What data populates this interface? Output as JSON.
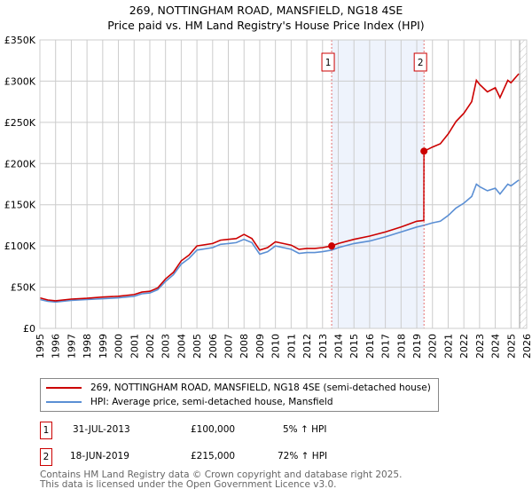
{
  "title_line1": "269, NOTTINGHAM ROAD, MANSFIELD, NG18 4SE",
  "title_line2": "Price paid vs. HM Land Registry's House Price Index (HPI)",
  "legend": {
    "property": "269, NOTTINGHAM ROAD, MANSFIELD, NG18 4SE (semi-detached house)",
    "hpi": "HPI: Average price, semi-detached house, Mansfield"
  },
  "sales": [
    {
      "num": "1",
      "date": "31-JUL-2013",
      "price": "£100,000",
      "hpi": "5% ↑ HPI"
    },
    {
      "num": "2",
      "date": "18-JUN-2019",
      "price": "£215,000",
      "hpi": "72% ↑ HPI"
    }
  ],
  "footer_line1": "Contains HM Land Registry data © Crown copyright and database right 2025.",
  "footer_line2": "This data is licensed under the Open Government Licence v3.0.",
  "colors": {
    "property": "#cc0000",
    "hpi": "#5b8fd4",
    "shade": "#eef3fc",
    "grid": "#cccccc"
  },
  "chart_data": {
    "type": "line",
    "title": "Price paid vs. HM Land Registry's House Price Index (HPI)",
    "xlim": [
      1995,
      2026
    ],
    "ylim": [
      0,
      350000
    ],
    "x_ticks": [
      "1995",
      "1996",
      "1997",
      "1998",
      "1999",
      "2000",
      "2001",
      "2002",
      "2003",
      "2004",
      "2005",
      "2006",
      "2007",
      "2008",
      "2009",
      "2010",
      "2011",
      "2012",
      "2013",
      "2014",
      "2015",
      "2016",
      "2017",
      "2018",
      "2019",
      "2020",
      "2021",
      "2022",
      "2023",
      "2024",
      "2025",
      "2026"
    ],
    "y_ticks": [
      {
        "value": 0,
        "label": "£0"
      },
      {
        "value": 50000,
        "label": "£50K"
      },
      {
        "value": 100000,
        "label": "£100K"
      },
      {
        "value": 150000,
        "label": "£150K"
      },
      {
        "value": 200000,
        "label": "£200K"
      },
      {
        "value": 250000,
        "label": "£250K"
      },
      {
        "value": 300000,
        "label": "£300K"
      },
      {
        "value": 350000,
        "label": "£350K"
      }
    ],
    "grid": true,
    "shaded_range": [
      2013.58,
      2019.46
    ],
    "hatched_from": 2025.55,
    "markers": [
      {
        "label": "1",
        "x": 2013.58,
        "y": 100000
      },
      {
        "label": "2",
        "x": 2019.46,
        "y": 215000
      }
    ],
    "series": [
      {
        "name": "269, NOTTINGHAM ROAD, MANSFIELD, NG18 4SE (semi-detached house)",
        "x": [
          1995,
          1995.5,
          1996,
          1997,
          1998,
          1999,
          2000,
          2001,
          2001.5,
          2002,
          2002.5,
          2003,
          2003.5,
          2004,
          2004.5,
          2005,
          2006,
          2006.5,
          2007,
          2007.5,
          2008,
          2008.5,
          2009,
          2009.5,
          2010,
          2010.5,
          2011,
          2011.5,
          2012,
          2012.5,
          2013,
          2013.58,
          2014,
          2015,
          2016,
          2017,
          2018,
          2019,
          2019.45,
          2019.46,
          2020,
          2020.5,
          2021,
          2021.5,
          2022,
          2022.5,
          2022.8,
          2023,
          2023.5,
          2024,
          2024.3,
          2024.8,
          2025,
          2025.5
        ],
        "y": [
          37000,
          34500,
          33500,
          35500,
          36500,
          38000,
          39000,
          41000,
          44000,
          45000,
          49000,
          60000,
          68000,
          82000,
          89000,
          100000,
          103000,
          107000,
          108000,
          109000,
          114000,
          109000,
          95000,
          98000,
          105000,
          103000,
          101000,
          96000,
          97000,
          97000,
          98000,
          100000,
          103000,
          108000,
          112000,
          117000,
          123000,
          130000,
          131000,
          215000,
          220000,
          224000,
          236000,
          251000,
          261000,
          275000,
          301000,
          296000,
          287000,
          292000,
          280000,
          301000,
          298000,
          309000
        ]
      },
      {
        "name": "HPI: Average price, semi-detached house, Mansfield",
        "x": [
          1995,
          1995.5,
          1996,
          1997,
          1998,
          1999,
          2000,
          2001,
          2001.5,
          2002,
          2002.5,
          2003,
          2003.5,
          2004,
          2004.5,
          2005,
          2006,
          2006.5,
          2007,
          2007.5,
          2008,
          2008.5,
          2009,
          2009.5,
          2010,
          2010.5,
          2011,
          2011.5,
          2012,
          2012.5,
          2013,
          2013.58,
          2014,
          2015,
          2016,
          2017,
          2018,
          2019,
          2019.46,
          2020,
          2020.5,
          2021,
          2021.5,
          2022,
          2022.5,
          2022.8,
          2023,
          2023.5,
          2024,
          2024.3,
          2024.8,
          2025,
          2025.5
        ],
        "y": [
          35000,
          33000,
          32000,
          34000,
          35000,
          36000,
          37000,
          39000,
          42000,
          43000,
          47000,
          57000,
          65000,
          78000,
          85000,
          95000,
          98000,
          102000,
          103000,
          104000,
          108000,
          104000,
          90000,
          93000,
          100000,
          98000,
          96000,
          91000,
          92000,
          92000,
          93000,
          95000,
          98000,
          103000,
          106000,
          111000,
          117000,
          123000,
          125000,
          128000,
          130000,
          137000,
          146000,
          152000,
          160000,
          175000,
          172000,
          167000,
          170000,
          163000,
          175000,
          173000,
          180000
        ]
      }
    ]
  }
}
